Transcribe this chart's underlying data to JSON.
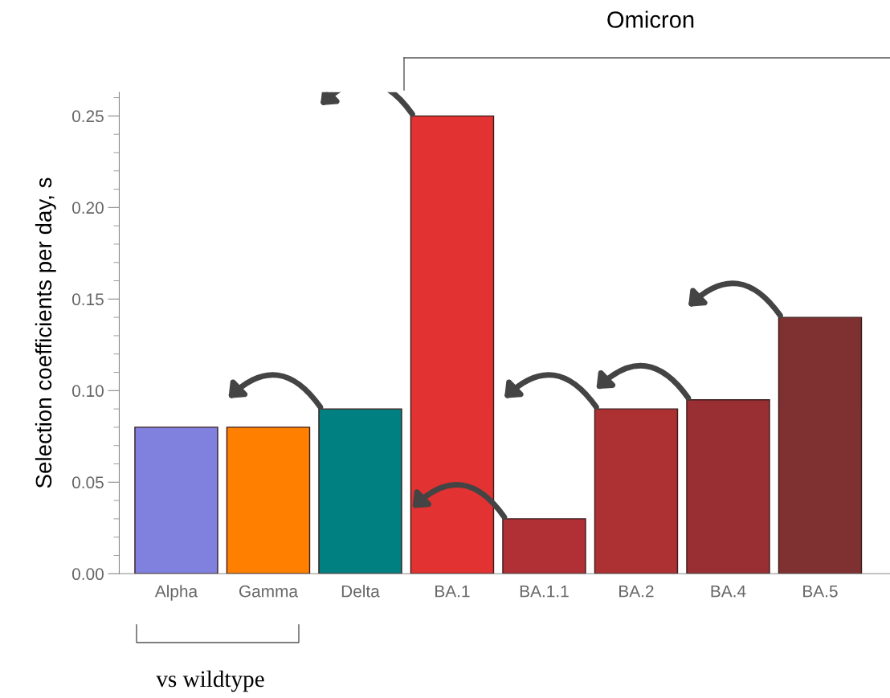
{
  "chart_data": {
    "type": "bar",
    "ylabel": "Selection coefficients per day, s",
    "categories": [
      "Alpha",
      "Gamma",
      "Delta",
      "BA.1",
      "BA.1.1",
      "BA.2",
      "BA.4",
      "BA.5"
    ],
    "values": [
      0.08,
      0.08,
      0.09,
      0.25,
      0.03,
      0.09,
      0.095,
      0.14
    ],
    "colors": [
      "#8080de",
      "#ff8000",
      "#008080",
      "#e33232",
      "#b03035",
      "#ad3033",
      "#9a2f33",
      "#7f3131"
    ],
    "ylim": [
      0,
      0.263
    ],
    "yticks": [
      {
        "value": 0,
        "label": "0.00"
      },
      {
        "value": 0.05,
        "label": "0.05"
      },
      {
        "value": 0.1,
        "label": "0.10"
      },
      {
        "value": 0.15,
        "label": "0.15"
      },
      {
        "value": 0.2,
        "label": "0.20"
      },
      {
        "value": 0.25,
        "label": "0.25"
      }
    ],
    "annotations": [
      "Omicron",
      "vs wildtype"
    ]
  }
}
